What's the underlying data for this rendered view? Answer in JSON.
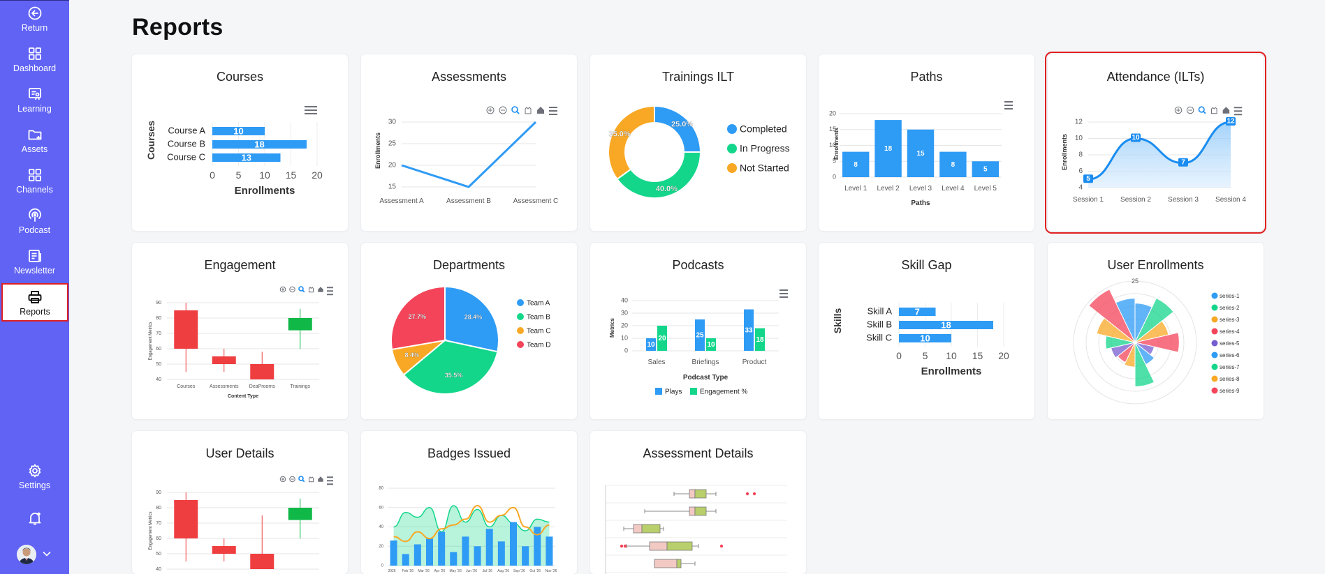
{
  "nav": {
    "return": "Return",
    "dashboard": "Dashboard",
    "learning": "Learning",
    "assets": "Assets",
    "channels": "Channels",
    "podcast": "Podcast",
    "newsletter": "Newsletter",
    "reports": "Reports",
    "settings": "Settings"
  },
  "page": {
    "title": "Reports"
  },
  "colors": {
    "sidebar": "#6063f4",
    "blue": "#2e9bf5",
    "green": "#13d68b",
    "orange": "#f9a825",
    "red": "#f4445a",
    "highlight": "#e02020"
  },
  "cards": {
    "courses": {
      "title": "Courses"
    },
    "assessments": {
      "title": "Assessments"
    },
    "trainings_ilt": {
      "title": "Trainings ILT"
    },
    "paths": {
      "title": "Paths"
    },
    "attendance": {
      "title": "Attendance (ILTs)"
    },
    "engagement": {
      "title": "Engagement"
    },
    "departments": {
      "title": "Departments"
    },
    "podcasts": {
      "title": "Podcasts"
    },
    "skill_gap": {
      "title": "Skill Gap"
    },
    "user_enrollments": {
      "title": "User Enrollments"
    },
    "user_details": {
      "title": "User Details"
    },
    "badges_issued": {
      "title": "Badges Issued"
    },
    "assessment_details": {
      "title": "Assessment Details"
    }
  },
  "chart_data": [
    {
      "id": "courses",
      "type": "bar",
      "orientation": "horizontal",
      "categories": [
        "Course A",
        "Course B",
        "Course C"
      ],
      "values": [
        10,
        18,
        13
      ],
      "xlabel": "Enrollments",
      "ylabel": "Courses",
      "xlim": [
        0,
        20
      ],
      "ticks": [
        0,
        5,
        10,
        15,
        20
      ]
    },
    {
      "id": "assessments",
      "type": "line",
      "categories": [
        "Assessment A",
        "Assessment B",
        "Assessment C"
      ],
      "values": [
        20,
        15,
        30
      ],
      "ylabel": "Enrollments",
      "ylim": [
        15,
        30
      ],
      "ticks": [
        15,
        20,
        25,
        30
      ]
    },
    {
      "id": "trainings_ilt",
      "type": "pie",
      "donut": true,
      "labels": [
        "Completed",
        "In Progress",
        "Not Started"
      ],
      "values": [
        25.0,
        40.0,
        35.0
      ],
      "value_labels": [
        "25.0%",
        "40.0%",
        "35.0%"
      ],
      "legend": "right"
    },
    {
      "id": "paths",
      "type": "bar",
      "categories": [
        "Level 1",
        "Level 2",
        "Level 3",
        "Level 4",
        "Level 5"
      ],
      "values": [
        8,
        18,
        15,
        8,
        5
      ],
      "xlabel": "Paths",
      "ylabel": "Enrollments",
      "ylim": [
        0,
        20
      ],
      "ticks": [
        0,
        5,
        10,
        15,
        20
      ]
    },
    {
      "id": "attendance",
      "type": "area",
      "categories": [
        "Session 1",
        "Session 2",
        "Session 3",
        "Session 4"
      ],
      "values": [
        5,
        10,
        7,
        12
      ],
      "ylabel": "Enrollments",
      "ylim": [
        4,
        12
      ],
      "ticks": [
        4,
        6,
        8,
        10,
        12
      ]
    },
    {
      "id": "engagement",
      "type": "candlestick",
      "categories": [
        "Courses",
        "Assessments",
        "DeaProoms",
        "Trainings"
      ],
      "candles": [
        [
          85,
          60,
          90,
          45
        ],
        [
          55,
          50,
          60,
          45
        ],
        [
          50,
          40,
          58,
          40
        ],
        [
          72,
          80,
          86,
          60
        ]
      ],
      "xlabel": "Content Type",
      "ylabel": "Engagement Metrics",
      "ylim": [
        40,
        90
      ],
      "ticks": [
        40,
        50,
        60,
        70,
        80,
        90
      ]
    },
    {
      "id": "departments",
      "type": "pie",
      "labels": [
        "Team A",
        "Team B",
        "Team C",
        "Team D"
      ],
      "values": [
        28.4,
        35.5,
        8.4,
        27.7
      ],
      "value_labels": [
        "28.4%",
        "35.5%",
        "8.4%",
        "27.7%"
      ],
      "legend": "right"
    },
    {
      "id": "podcasts",
      "type": "bar",
      "categories": [
        "Sales",
        "Briefings",
        "Product"
      ],
      "series": [
        {
          "name": "Plays",
          "values": [
            10,
            25,
            33
          ]
        },
        {
          "name": "Engagement %",
          "values": [
            20,
            10,
            18
          ]
        }
      ],
      "xlabel": "Podcast Type",
      "ylabel": "Metrics",
      "ylim": [
        0,
        40
      ],
      "ticks": [
        0,
        10,
        20,
        30,
        40
      ],
      "legend": "bottom"
    },
    {
      "id": "skill_gap",
      "type": "bar",
      "orientation": "horizontal",
      "categories": [
        "Skill A",
        "Skill B",
        "Skill C"
      ],
      "values": [
        7,
        18,
        10
      ],
      "xlabel": "Enrollments",
      "ylabel": "Skills",
      "xlim": [
        0,
        20
      ],
      "ticks": [
        0,
        5,
        10,
        15,
        20
      ]
    },
    {
      "id": "user_enrollments",
      "type": "polar",
      "series_names": [
        "series-1",
        "series-2",
        "series-3",
        "series-4",
        "series-5",
        "series-6",
        "series-7",
        "series-8",
        "series-9"
      ],
      "values": [
        16,
        20,
        14,
        18,
        8,
        10,
        18,
        10,
        9,
        10,
        12,
        16,
        24,
        18
      ],
      "rmax": 25,
      "tick": "25",
      "legend": "right"
    },
    {
      "id": "user_details",
      "type": "candlestick",
      "candles": [
        [
          85,
          60,
          90,
          45
        ],
        [
          55,
          50,
          60,
          45
        ],
        [
          50,
          40,
          75,
          40
        ],
        [
          72,
          80,
          86,
          60
        ]
      ],
      "ylabel": "Engagement Metrics",
      "ylim": [
        40,
        90
      ],
      "ticks": [
        40,
        50,
        60,
        70,
        80,
        90
      ]
    },
    {
      "id": "badges_issued",
      "type": "mixed",
      "bars": [
        26,
        12,
        22,
        28,
        35,
        14,
        30,
        20,
        38,
        25,
        45,
        20,
        40,
        30
      ],
      "area": [
        40,
        55,
        50,
        60,
        35,
        62,
        45,
        58,
        40,
        52,
        44,
        36,
        48,
        45
      ],
      "line": [
        30,
        25,
        35,
        28,
        38,
        42,
        48,
        62,
        45,
        52,
        60,
        40,
        32,
        42
      ],
      "ticks": [
        0,
        20,
        40,
        60,
        80
      ],
      "x_ticks": [
        "2026",
        "Feb '26",
        "Mar '26",
        "Apr '26",
        "May '26",
        "Jun '26",
        "Jul '26",
        "Aug '26",
        "Sep '26",
        "Oct '26",
        "Nov '26"
      ]
    },
    {
      "id": "assessment_details",
      "type": "boxplot",
      "boxes": [
        [
          120,
          142,
          150,
          166,
          180
        ],
        [
          78,
          142,
          150,
          166,
          180
        ],
        [
          48,
          62,
          74,
          100,
          105
        ],
        [
          52,
          85,
          110,
          146,
          155
        ],
        [
          92,
          92,
          124,
          130,
          150
        ]
      ],
      "outliers": [
        [
          225,
          235
        ],
        [],
        [],
        [
          45,
          50,
          188
        ],
        []
      ]
    }
  ]
}
